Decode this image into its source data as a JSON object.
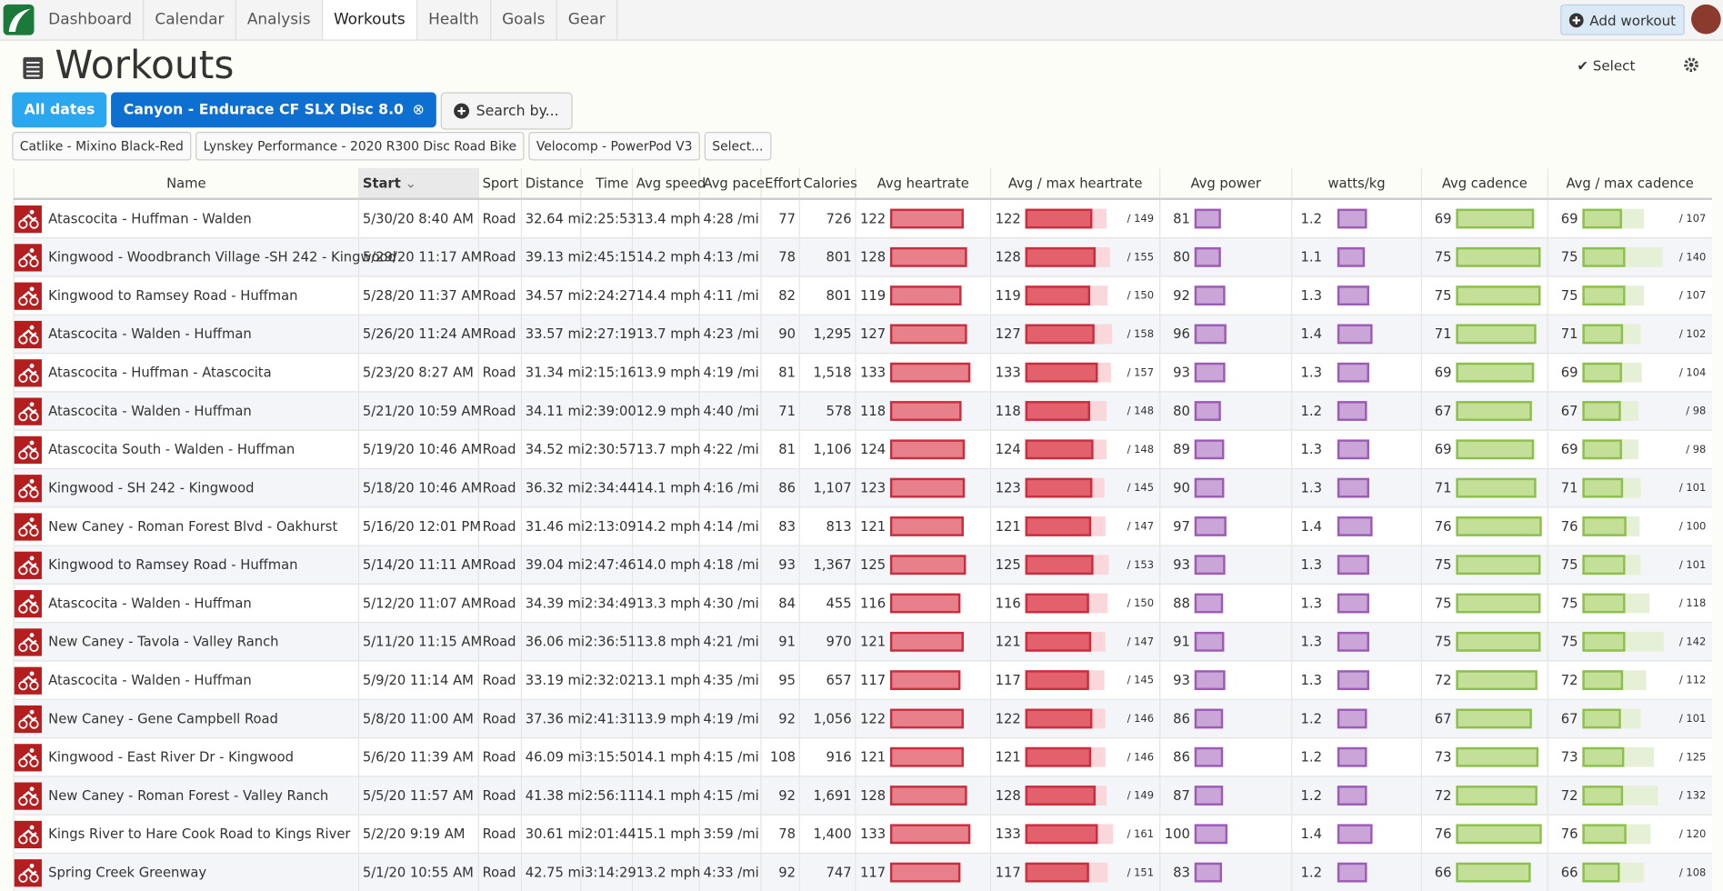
{
  "nav": {
    "tabs": [
      "Dashboard",
      "Calendar",
      "Analysis",
      "Workouts",
      "Health",
      "Goals",
      "Gear"
    ],
    "add_workout": "Add workout"
  },
  "header": {
    "title": "Workouts",
    "select": "Select"
  },
  "filters": {
    "dates": "All dates",
    "gear": "Canyon - Endurace CF SLX Disc 8.0",
    "search": "Search by..."
  },
  "gear_options": [
    "Catlike - Mixino Black-Red",
    "Lynskey Performance - 2020 R300 Disc Road Bike",
    "Velocomp - PowerPod V3",
    "Select..."
  ],
  "table": {
    "columns": [
      "Name",
      "Start",
      "Sport",
      "Distance",
      "Time",
      "Avg speed",
      "Avg pace",
      "Effort",
      "Calories",
      "Avg heartrate",
      "Avg / max heartrate",
      "Avg power",
      "watts/kg",
      "Avg cadence",
      "Avg / max cadence"
    ],
    "rows": [
      [
        "Atascocita - Huffman - Walden",
        "5/30/20 8:40 AM",
        "Road",
        "32.64 mi",
        "2:25:53",
        "13.4 mph",
        "4:28 /mi",
        77,
        726,
        122,
        {
          "value": 149,
          "label": "/ 149"
        },
        81,
        1.2,
        69,
        {
          "value": 107,
          "label": "/ 107"
        }
      ],
      [
        "Kingwood - Woodbranch Village -SH 242 - Kingwood",
        "5/29/20 11:17 AM",
        "Road",
        "39.13 mi",
        "2:45:15",
        "14.2 mph",
        "4:13 /mi",
        78,
        801,
        128,
        {
          "value": 155,
          "label": "/ 155"
        },
        80,
        1.1,
        75,
        {
          "value": 140,
          "label": "/ 140"
        }
      ],
      [
        "Kingwood to Ramsey Road - Huffman",
        "5/28/20 11:37 AM",
        "Road",
        "34.57 mi",
        "2:24:27",
        "14.4 mph",
        "4:11 /mi",
        82,
        801,
        119,
        {
          "value": 150,
          "label": "/ 150"
        },
        92,
        1.3,
        75,
        {
          "value": 107,
          "label": "/ 107"
        }
      ],
      [
        "Atascocita - Walden - Huffman",
        "5/26/20 11:24 AM",
        "Road",
        "33.57 mi",
        "2:27:19",
        "13.7 mph",
        "4:23 /mi",
        90,
        {
          "value": 1295,
          "label": "1,295"
        },
        127,
        {
          "value": 158,
          "label": "/ 158"
        },
        96,
        1.4,
        71,
        {
          "value": 102,
          "label": "/ 102"
        }
      ],
      [
        "Atascocita - Huffman - Atascocita",
        "5/23/20 8:27 AM",
        "Road",
        "31.34 mi",
        "2:15:16",
        "13.9 mph",
        "4:19 /mi",
        81,
        {
          "value": 1518,
          "label": "1,518"
        },
        133,
        {
          "value": 157,
          "label": "/ 157"
        },
        93,
        1.3,
        69,
        {
          "value": 104,
          "label": "/ 104"
        }
      ],
      [
        "Atascocita - Walden - Huffman",
        "5/21/20 10:59 AM",
        "Road",
        "34.11 mi",
        "2:39:00",
        "12.9 mph",
        "4:40 /mi",
        71,
        578,
        118,
        {
          "value": 148,
          "label": "/ 148"
        },
        80,
        1.2,
        67,
        {
          "value": 98,
          "label": "/ 98"
        }
      ],
      [
        "Atascocita South - Walden - Huffman",
        "5/19/20 10:46 AM",
        "Road",
        "34.52 mi",
        "2:30:57",
        "13.7 mph",
        "4:22 /mi",
        81,
        {
          "value": 1106,
          "label": "1,106"
        },
        124,
        {
          "value": 148,
          "label": "/ 148"
        },
        89,
        1.3,
        69,
        {
          "value": 98,
          "label": "/ 98"
        }
      ],
      [
        "Kingwood - SH 242 - Kingwood",
        "5/18/20 10:46 AM",
        "Road",
        "36.32 mi",
        "2:34:44",
        "14.1 mph",
        "4:16 /mi",
        86,
        {
          "value": 1107,
          "label": "1,107"
        },
        123,
        {
          "value": 145,
          "label": "/ 145"
        },
        90,
        1.3,
        71,
        {
          "value": 101,
          "label": "/ 101"
        }
      ],
      [
        "New Caney - Roman Forest Blvd - Oakhurst",
        "5/16/20 12:01 PM",
        "Road",
        "31.46 mi",
        "2:13:09",
        "14.2 mph",
        "4:14 /mi",
        83,
        813,
        121,
        {
          "value": 147,
          "label": "/ 147"
        },
        97,
        1.4,
        76,
        {
          "value": 100,
          "label": "/ 100"
        }
      ],
      [
        "Kingwood to Ramsey Road - Huffman",
        "5/14/20 11:11 AM",
        "Road",
        "39.04 mi",
        "2:47:46",
        "14.0 mph",
        "4:18 /mi",
        93,
        {
          "value": 1367,
          "label": "1,367"
        },
        125,
        {
          "value": 153,
          "label": "/ 153"
        },
        93,
        1.3,
        75,
        {
          "value": 101,
          "label": "/ 101"
        }
      ],
      [
        "Atascocita - Walden - Huffman",
        "5/12/20 11:07 AM",
        "Road",
        "34.39 mi",
        "2:34:49",
        "13.3 mph",
        "4:30 /mi",
        84,
        455,
        116,
        {
          "value": 150,
          "label": "/ 150"
        },
        88,
        1.3,
        75,
        {
          "value": 118,
          "label": "/ 118"
        }
      ],
      [
        "New Caney - Tavola - Valley Ranch",
        "5/11/20 11:15 AM",
        "Road",
        "36.06 mi",
        "2:36:51",
        "13.8 mph",
        "4:21 /mi",
        91,
        970,
        121,
        {
          "value": 147,
          "label": "/ 147"
        },
        91,
        1.3,
        75,
        {
          "value": 142,
          "label": "/ 142"
        }
      ],
      [
        "Atascocita - Walden - Huffman",
        "5/9/20 11:14 AM",
        "Road",
        "33.19 mi",
        "2:32:02",
        "13.1 mph",
        "4:35 /mi",
        95,
        657,
        117,
        {
          "value": 145,
          "label": "/ 145"
        },
        93,
        1.3,
        72,
        {
          "value": 112,
          "label": "/ 112"
        }
      ],
      [
        "New Caney - Gene Campbell Road",
        "5/8/20 11:00 AM",
        "Road",
        "37.36 mi",
        "2:41:31",
        "13.9 mph",
        "4:19 /mi",
        92,
        {
          "value": 1056,
          "label": "1,056"
        },
        122,
        {
          "value": 146,
          "label": "/ 146"
        },
        86,
        1.2,
        67,
        {
          "value": 101,
          "label": "/ 101"
        }
      ],
      [
        "Kingwood - East River Dr - Kingwood",
        "5/6/20 11:39 AM",
        "Road",
        "46.09 mi",
        "3:15:50",
        "14.1 mph",
        "4:15 /mi",
        108,
        916,
        121,
        {
          "value": 146,
          "label": "/ 146"
        },
        86,
        1.2,
        73,
        {
          "value": 125,
          "label": "/ 125"
        }
      ],
      [
        "New Caney - Roman Forest - Valley Ranch",
        "5/5/20 11:57 AM",
        "Road",
        "41.38 mi",
        "2:56:11",
        "14.1 mph",
        "4:15 /mi",
        92,
        {
          "value": 1691,
          "label": "1,691"
        },
        128,
        {
          "value": 149,
          "label": "/ 149"
        },
        87,
        1.2,
        72,
        {
          "value": 132,
          "label": "/ 132"
        }
      ],
      [
        "Kings River to Hare Cook Road to Kings River",
        "5/2/20 9:19 AM",
        "Road",
        "30.61 mi",
        "2:01:44",
        "15.1 mph",
        "3:59 /mi",
        78,
        {
          "value": 1400,
          "label": "1,400"
        },
        133,
        {
          "value": 161,
          "label": "/ 161"
        },
        100,
        1.4,
        76,
        {
          "value": 120,
          "label": "/ 120"
        }
      ],
      [
        "Spring Creek Greenway",
        "5/1/20 10:55 AM",
        "Road",
        "42.75 mi",
        "3:14:29",
        "13.2 mph",
        "4:33 /mi",
        92,
        747,
        117,
        {
          "value": 151,
          "label": "/ 151"
        },
        83,
        1.2,
        66,
        {
          "value": 108,
          "label": "/ 108"
        }
      ]
    ]
  }
}
